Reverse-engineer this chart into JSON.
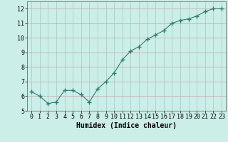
{
  "x": [
    0,
    1,
    2,
    3,
    4,
    5,
    6,
    7,
    8,
    9,
    10,
    11,
    12,
    13,
    14,
    15,
    16,
    17,
    18,
    19,
    20,
    21,
    22,
    23
  ],
  "y": [
    6.3,
    6.0,
    5.5,
    5.6,
    6.4,
    6.4,
    6.1,
    5.6,
    6.5,
    7.0,
    7.6,
    8.5,
    9.1,
    9.4,
    9.9,
    10.2,
    10.5,
    11.0,
    11.2,
    11.3,
    11.5,
    11.8,
    12.0,
    12.0
  ],
  "xlabel": "Humidex (Indice chaleur)",
  "ylim": [
    5,
    12.5
  ],
  "xlim": [
    -0.5,
    23.5
  ],
  "yticks": [
    5,
    6,
    7,
    8,
    9,
    10,
    11,
    12
  ],
  "xticks": [
    0,
    1,
    2,
    3,
    4,
    5,
    6,
    7,
    8,
    9,
    10,
    11,
    12,
    13,
    14,
    15,
    16,
    17,
    18,
    19,
    20,
    21,
    22,
    23
  ],
  "line_color": "#2e7d6e",
  "marker": "+",
  "marker_size": 4,
  "bg_color": "#cceee8",
  "grid_color_h": "#c8a0a0",
  "grid_color_v": "#a0c8c0",
  "font_family": "monospace",
  "font_size_xlabel": 7,
  "font_size_ticks": 6
}
